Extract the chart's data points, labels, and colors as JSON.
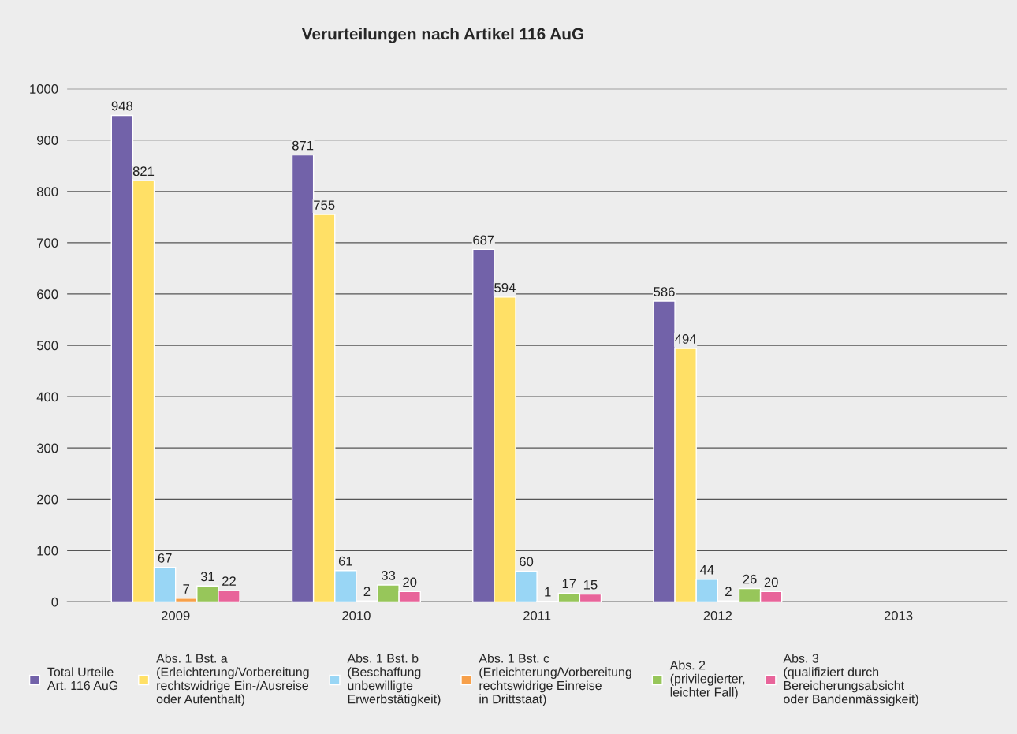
{
  "chart_data": {
    "type": "bar",
    "title": "Verurteilungen nach Artikel 116 AuG",
    "categories": [
      "2009",
      "2010",
      "2011",
      "2012",
      "2013"
    ],
    "series": [
      {
        "name": "Total Urteile\nArt. 116 AuG",
        "color": "#7262a9",
        "values": [
          948,
          871,
          687,
          586,
          null
        ]
      },
      {
        "name": "Abs. 1 Bst. a\n(Erleichterung/Vorbereitung\nrechtswidrige Ein-/Ausreise\noder Aufenthalt)",
        "color": "#ffe066",
        "values": [
          821,
          755,
          594,
          494,
          null
        ]
      },
      {
        "name": "Abs. 1 Bst. b\n(Beschaffung\nunbewilligte\nErwerbstätigkeit)",
        "color": "#99d6f5",
        "values": [
          67,
          61,
          60,
          44,
          null
        ]
      },
      {
        "name": "Abs. 1 Bst. c\n(Erleichterung/Vorbereitung\nrechtswidrige Einreise\nin Drittstaat)",
        "color": "#f7a04a",
        "values": [
          7,
          2,
          1,
          2,
          null
        ]
      },
      {
        "name": "Abs. 2\n(privilegierter,\nleichter Fall)",
        "color": "#97c65a",
        "values": [
          31,
          33,
          17,
          26,
          null
        ]
      },
      {
        "name": "Abs. 3\n(qualifiziert durch\nBereicherungsabsicht\noder Bandenmässigkeit)",
        "color": "#e8649a",
        "values": [
          22,
          20,
          15,
          20,
          null
        ]
      }
    ],
    "ylim": [
      0,
      1000
    ],
    "yticks": [
      0,
      100,
      200,
      300,
      400,
      500,
      600,
      700,
      800,
      900,
      1000
    ],
    "grid": "y",
    "legend": "bottom",
    "data_labels": true
  }
}
